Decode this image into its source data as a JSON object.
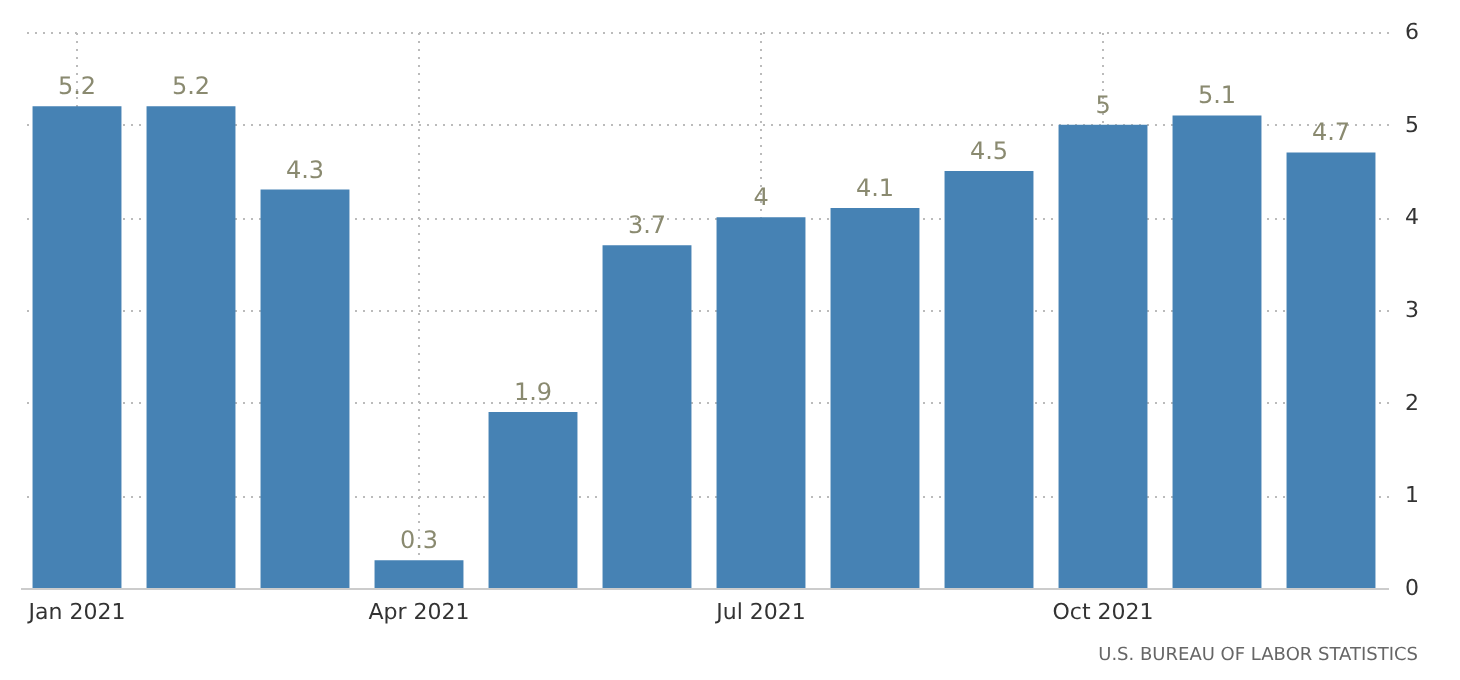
{
  "chart_data": {
    "type": "bar",
    "categories": [
      "Jan 2021",
      null,
      null,
      "Apr 2021",
      null,
      null,
      "Jul 2021",
      null,
      null,
      "Oct 2021",
      null,
      null
    ],
    "values": [
      5.2,
      5.2,
      4.3,
      0.3,
      1.9,
      3.7,
      4,
      4.1,
      4.5,
      5,
      5.1,
      4.7
    ],
    "color": "#4682b4",
    "ylim": [
      0,
      6
    ],
    "yticks": [
      0,
      1,
      2,
      3,
      4,
      5,
      6
    ],
    "grid": true,
    "data_labels": true,
    "annotations": [
      "U.S. BUREAU OF LABOR STATISTICS"
    ]
  }
}
